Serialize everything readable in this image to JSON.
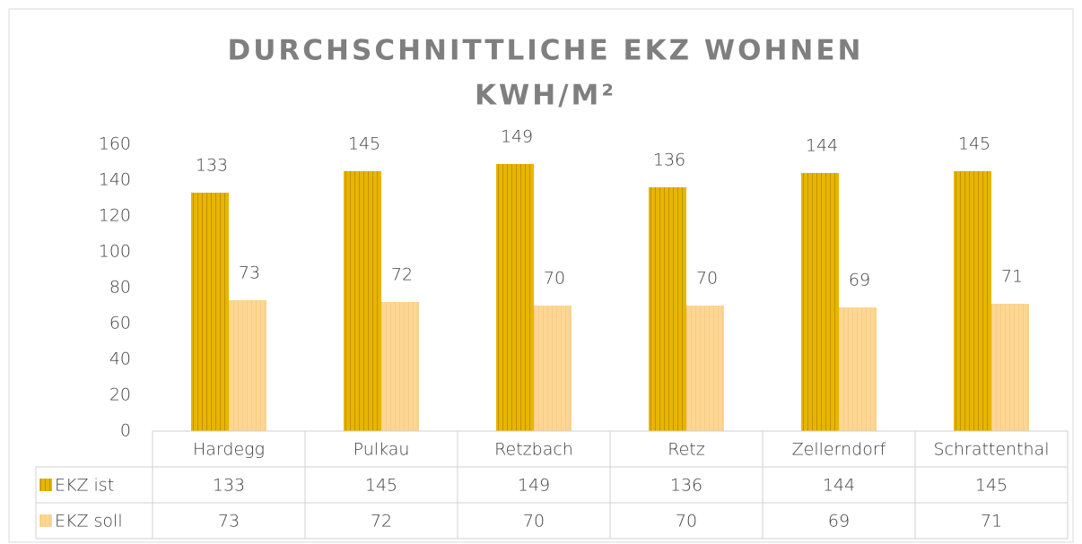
{
  "chart_data": {
    "type": "bar",
    "title": [
      "DURCHSCHNITTLICHE EKZ WOHNEN",
      "KWH/M²"
    ],
    "categories": [
      "Hardegg",
      "Pulkau",
      "Retzbach",
      "Retz",
      "Zellerndorf",
      "Schrattenthal"
    ],
    "series": [
      {
        "name": "EKZ ist",
        "color": "#e8b500",
        "values": [
          133,
          145,
          149,
          136,
          144,
          145
        ]
      },
      {
        "name": "EKZ soll",
        "color": "#fdd694",
        "values": [
          73,
          72,
          70,
          70,
          69,
          71
        ]
      }
    ],
    "ylim": [
      0,
      160
    ],
    "yticks": [
      0,
      20,
      40,
      60,
      80,
      100,
      120,
      140,
      160
    ],
    "grid": false,
    "data_table": true
  }
}
